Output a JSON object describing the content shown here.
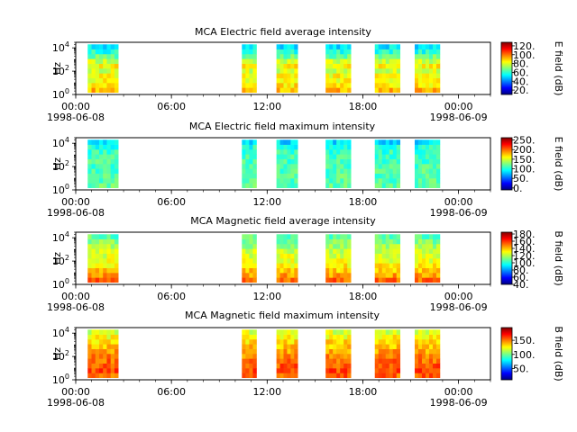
{
  "figure": {
    "background": "#ffffff"
  },
  "chart_data": [
    {
      "type": "heatmap",
      "title": "MCA  Electric field average intensity",
      "ylabel": "Hz",
      "yscale": "log",
      "ylim": [
        1,
        30000
      ],
      "yticks": [
        {
          "value": 1,
          "base": "10",
          "exp": "0"
        },
        {
          "value": 100,
          "base": "10",
          "exp": "2"
        },
        {
          "value": 10000,
          "base": "10",
          "exp": "4"
        }
      ],
      "xlim": [
        "1998-06-08 00:00",
        "1998-06-09 02:00"
      ],
      "xticks": [
        {
          "value": "1998-06-08 00:00",
          "time": "00:00",
          "date": "1998-06-08"
        },
        {
          "value": "1998-06-08 06:00",
          "time": "06:00",
          "date": ""
        },
        {
          "value": "1998-06-08 12:00",
          "time": "12:00",
          "date": ""
        },
        {
          "value": "1998-06-08 18:00",
          "time": "18:00",
          "date": ""
        },
        {
          "value": "1998-06-09 00:00",
          "time": "00:00",
          "date": "1998-06-09"
        }
      ],
      "colorbar": {
        "label": "E field (dB)",
        "range": [
          10,
          128
        ],
        "ticks": [
          20,
          40,
          60,
          80,
          100,
          120
        ],
        "tick_labels": [
          "20.",
          "40.",
          "60.",
          "80.",
          "100.",
          "120."
        ]
      },
      "colormap": "jet",
      "data_intervals": [
        {
          "start": "1998-06-08 00:45",
          "end": "1998-06-08 02:40"
        },
        {
          "start": "1998-06-08 10:25",
          "end": "1998-06-08 11:20"
        },
        {
          "start": "1998-06-08 12:35",
          "end": "1998-06-08 13:55"
        },
        {
          "start": "1998-06-08 15:40",
          "end": "1998-06-08 17:15"
        },
        {
          "start": "1998-06-08 18:45",
          "end": "1998-06-08 20:20"
        },
        {
          "start": "1998-06-08 21:15",
          "end": "1998-06-08 22:50"
        }
      ],
      "level_profile": [
        [
          1.5,
          95
        ],
        [
          4,
          90
        ],
        [
          10,
          82
        ],
        [
          30,
          85
        ],
        [
          100,
          78
        ],
        [
          300,
          85
        ],
        [
          1000,
          75
        ],
        [
          3000,
          60
        ],
        [
          10000,
          55
        ],
        [
          20000,
          45
        ]
      ]
    },
    {
      "type": "heatmap",
      "title": "MCA  Electric field maximum intensity",
      "ylabel": "Hz",
      "yscale": "log",
      "ylim": [
        1,
        30000
      ],
      "yticks": [
        {
          "value": 1,
          "base": "10",
          "exp": "0"
        },
        {
          "value": 100,
          "base": "10",
          "exp": "2"
        },
        {
          "value": 10000,
          "base": "10",
          "exp": "4"
        }
      ],
      "xlim": [
        "1998-06-08 00:00",
        "1998-06-09 02:00"
      ],
      "xticks": [
        {
          "value": "1998-06-08 00:00",
          "time": "00:00",
          "date": "1998-06-08"
        },
        {
          "value": "1998-06-08 06:00",
          "time": "06:00",
          "date": ""
        },
        {
          "value": "1998-06-08 12:00",
          "time": "12:00",
          "date": ""
        },
        {
          "value": "1998-06-08 18:00",
          "time": "18:00",
          "date": ""
        },
        {
          "value": "1998-06-09 00:00",
          "time": "00:00",
          "date": "1998-06-09"
        }
      ],
      "colorbar": {
        "label": "E field (dB)",
        "range": [
          -10,
          262
        ],
        "ticks": [
          0,
          50,
          100,
          150,
          200,
          250
        ],
        "tick_labels": [
          "0.",
          "50.",
          "100.",
          "150.",
          "200.",
          "250."
        ]
      },
      "colormap": "jet",
      "data_intervals": [
        {
          "start": "1998-06-08 00:45",
          "end": "1998-06-08 02:40"
        },
        {
          "start": "1998-06-08 10:25",
          "end": "1998-06-08 11:20"
        },
        {
          "start": "1998-06-08 12:35",
          "end": "1998-06-08 13:55"
        },
        {
          "start": "1998-06-08 15:40",
          "end": "1998-06-08 17:15"
        },
        {
          "start": "1998-06-08 18:45",
          "end": "1998-06-08 20:20"
        },
        {
          "start": "1998-06-08 21:15",
          "end": "1998-06-08 22:50"
        }
      ],
      "level_profile": [
        [
          1.5,
          118
        ],
        [
          10,
          115
        ],
        [
          100,
          112
        ],
        [
          1000,
          110
        ],
        [
          5000,
          100
        ],
        [
          20000,
          75
        ]
      ]
    },
    {
      "type": "heatmap",
      "title": "MCA  Magnetic field average intensity",
      "ylabel": "Hz",
      "yscale": "log",
      "ylim": [
        1,
        30000
      ],
      "yticks": [
        {
          "value": 1,
          "base": "10",
          "exp": "0"
        },
        {
          "value": 100,
          "base": "10",
          "exp": "2"
        },
        {
          "value": 10000,
          "base": "10",
          "exp": "4"
        }
      ],
      "xlim": [
        "1998-06-08 00:00",
        "1998-06-09 02:00"
      ],
      "xticks": [
        {
          "value": "1998-06-08 00:00",
          "time": "00:00",
          "date": "1998-06-08"
        },
        {
          "value": "1998-06-08 06:00",
          "time": "06:00",
          "date": ""
        },
        {
          "value": "1998-06-08 12:00",
          "time": "12:00",
          "date": ""
        },
        {
          "value": "1998-06-08 18:00",
          "time": "18:00",
          "date": ""
        },
        {
          "value": "1998-06-09 00:00",
          "time": "00:00",
          "date": "1998-06-09"
        }
      ],
      "colorbar": {
        "label": "B field (dB)",
        "range": [
          40,
          185
        ],
        "ticks": [
          40,
          60,
          80,
          100,
          120,
          140,
          160,
          180
        ],
        "tick_labels": [
          "40.",
          "60.",
          "80.",
          "100.",
          "120.",
          "140.",
          "160.",
          "180."
        ]
      },
      "colormap": "jet",
      "data_intervals": [
        {
          "start": "1998-06-08 00:45",
          "end": "1998-06-08 02:40"
        },
        {
          "start": "1998-06-08 10:25",
          "end": "1998-06-08 11:20"
        },
        {
          "start": "1998-06-08 12:35",
          "end": "1998-06-08 13:55"
        },
        {
          "start": "1998-06-08 15:40",
          "end": "1998-06-08 17:15"
        },
        {
          "start": "1998-06-08 18:45",
          "end": "1998-06-08 20:20"
        },
        {
          "start": "1998-06-08 21:15",
          "end": "1998-06-08 22:50"
        }
      ],
      "level_profile": [
        [
          1.5,
          160
        ],
        [
          3,
          150
        ],
        [
          10,
          140
        ],
        [
          30,
          135
        ],
        [
          100,
          128
        ],
        [
          1000,
          122
        ],
        [
          5000,
          112
        ],
        [
          20000,
          105
        ]
      ]
    },
    {
      "type": "heatmap",
      "title": "MCA  Magnetic field maximum intensity",
      "ylabel": "Hz",
      "yscale": "log",
      "ylim": [
        1,
        30000
      ],
      "yticks": [
        {
          "value": 1,
          "base": "10",
          "exp": "0"
        },
        {
          "value": 100,
          "base": "10",
          "exp": "2"
        },
        {
          "value": 10000,
          "base": "10",
          "exp": "4"
        }
      ],
      "xlim": [
        "1998-06-08 00:00",
        "1998-06-09 02:00"
      ],
      "xticks": [
        {
          "value": "1998-06-08 00:00",
          "time": "00:00",
          "date": "1998-06-08"
        },
        {
          "value": "1998-06-08 06:00",
          "time": "06:00",
          "date": ""
        },
        {
          "value": "1998-06-08 12:00",
          "time": "12:00",
          "date": ""
        },
        {
          "value": "1998-06-08 18:00",
          "time": "18:00",
          "date": ""
        },
        {
          "value": "1998-06-09 00:00",
          "time": "00:00",
          "date": "1998-06-09"
        }
      ],
      "colorbar": {
        "label": "B field (dB)",
        "range": [
          10,
          195
        ],
        "ticks": [
          50,
          100,
          150
        ],
        "tick_labels": [
          "50.",
          "100.",
          "150."
        ]
      },
      "colormap": "jet",
      "data_intervals": [
        {
          "start": "1998-06-08 00:45",
          "end": "1998-06-08 02:40"
        },
        {
          "start": "1998-06-08 10:25",
          "end": "1998-06-08 11:20"
        },
        {
          "start": "1998-06-08 12:35",
          "end": "1998-06-08 13:55"
        },
        {
          "start": "1998-06-08 15:40",
          "end": "1998-06-08 17:15"
        },
        {
          "start": "1998-06-08 18:45",
          "end": "1998-06-08 20:20"
        },
        {
          "start": "1998-06-08 21:15",
          "end": "1998-06-08 22:50"
        }
      ],
      "level_profile": [
        [
          1.5,
          150
        ],
        [
          5,
          160
        ],
        [
          20,
          155
        ],
        [
          100,
          148
        ],
        [
          1000,
          135
        ],
        [
          5000,
          125
        ],
        [
          20000,
          115
        ]
      ]
    }
  ]
}
